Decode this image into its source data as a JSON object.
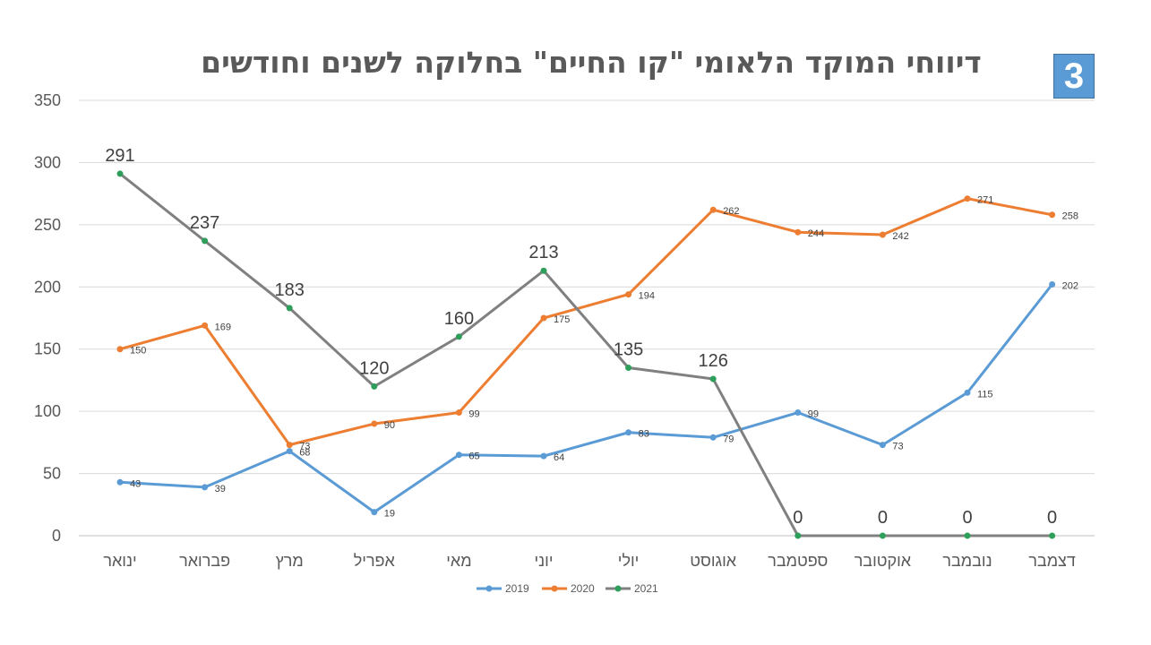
{
  "page": {
    "title": "דיווחי המוקד הלאומי \"קו החיים\" בחלוקה לשנים וחודשים",
    "badge": "3"
  },
  "chart_data": {
    "type": "line",
    "title": "דיווחי המוקד הלאומי \"קו החיים\" בחלוקה לשנים וחודשים",
    "categories": [
      "ינואר",
      "פברואר",
      "מרץ",
      "אפריל",
      "מאי",
      "יוני",
      "יולי",
      "אוגוסט",
      "ספטמבר",
      "אוקטובר",
      "נובמבר",
      "דצמבר"
    ],
    "y_ticks": [
      "0",
      "50",
      "100",
      "150",
      "200",
      "250",
      "300",
      "350"
    ],
    "ylim": [
      0,
      350
    ],
    "grid": true,
    "legend_position": "bottom",
    "series": [
      {
        "name": "2019",
        "color": "#5b9bd5",
        "marker_color": "#5b9bd5",
        "values": [
          43,
          39,
          68,
          19,
          65,
          64,
          83,
          79,
          99,
          73,
          115,
          202
        ],
        "labels": [
          "43",
          "39",
          "68",
          "19",
          "65",
          "64",
          "83",
          "79",
          "99",
          "73",
          "115",
          "202"
        ]
      },
      {
        "name": "2020",
        "color": "#ed7d31",
        "marker_color": "#ed7d31",
        "values": [
          150,
          169,
          73,
          90,
          99,
          175,
          194,
          262,
          244,
          242,
          271,
          258
        ],
        "labels": [
          "150",
          "169",
          "73",
          "90",
          "99",
          "175",
          "194",
          "262",
          "244",
          "242",
          "271",
          "258"
        ]
      },
      {
        "name": "2021",
        "color": "#808080",
        "marker_color": "#2e9e5b",
        "values": [
          291,
          237,
          183,
          120,
          160,
          213,
          135,
          126,
          0,
          0,
          0,
          0
        ],
        "labels": [
          "291",
          "237",
          "183",
          "120",
          "160",
          "213",
          "135",
          "126",
          "0",
          "0",
          "0",
          "0"
        ]
      }
    ]
  }
}
